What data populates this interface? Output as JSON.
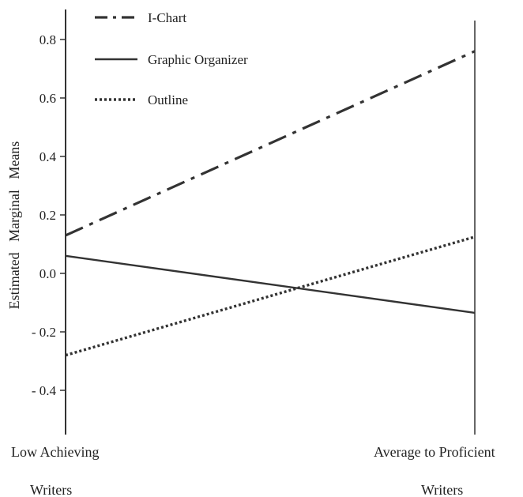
{
  "chart_data": {
    "type": "line",
    "ylabel": "Estimated   Marginal   Means",
    "ylim": [
      -0.58,
      0.9
    ],
    "yticks": [
      0.8,
      0.6,
      0.4,
      0.2,
      0.0,
      -0.2,
      -0.4
    ],
    "ytick_labels": [
      "0.8",
      "0.6",
      "0.4",
      "0.2",
      "0.0",
      "- 0.2",
      "- 0.4"
    ],
    "categories": [
      "Low Achieving Writers",
      "Average to Proficient Writers"
    ],
    "category_labels": [
      {
        "line1": "Low Achieving",
        "line2": "Writers"
      },
      {
        "line1": "Average to Proficient",
        "line2": "Writers"
      }
    ],
    "series": [
      {
        "name": "I-Chart",
        "values": [
          0.13,
          0.76
        ],
        "style": "dashdot",
        "color": "#333333"
      },
      {
        "name": "Graphic Organizer",
        "values": [
          0.06,
          -0.135
        ],
        "style": "solid",
        "color": "#333333"
      },
      {
        "name": "Outline",
        "values": [
          -0.28,
          0.125
        ],
        "style": "dotted",
        "color": "#333333"
      }
    ],
    "legend": "top-left",
    "grid": false
  }
}
